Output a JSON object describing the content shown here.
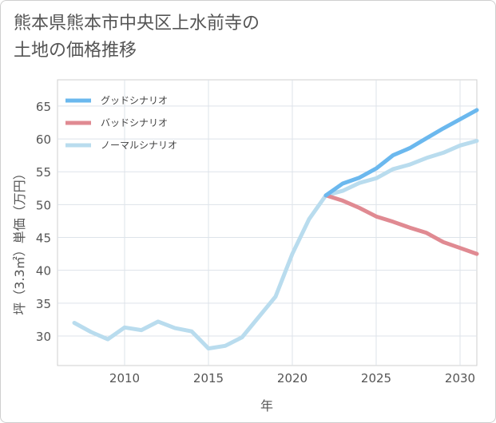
{
  "title_line1": "熊本県熊本市中央区上水前寺の",
  "title_line2": "土地の価格推移",
  "chart_data": {
    "type": "line",
    "title": "熊本県熊本市中央区上水前寺の土地の価格推移",
    "xlabel": "年",
    "ylabel": "坪（3.3㎡）単価（万円）",
    "xlim": [
      2006,
      2031
    ],
    "ylim": [
      25.5,
      69
    ],
    "x_ticks": [
      2010,
      2015,
      2020,
      2025,
      2030
    ],
    "y_ticks": [
      30,
      35,
      40,
      45,
      50,
      55,
      60,
      65
    ],
    "grid": true,
    "legend_position": "top-left",
    "series": [
      {
        "name": "グッドシナリオ",
        "color": "#6bb8ee",
        "x": [
          2022,
          2023,
          2024,
          2025,
          2026,
          2027,
          2028,
          2029,
          2030,
          2031
        ],
        "y": [
          51.4,
          53.2,
          54.1,
          55.5,
          57.5,
          58.6,
          60.1,
          61.6,
          63.0,
          64.4
        ]
      },
      {
        "name": "バッドシナリオ",
        "color": "#e08a92",
        "x": [
          2022,
          2023,
          2024,
          2025,
          2026,
          2027,
          2028,
          2029,
          2030,
          2031
        ],
        "y": [
          51.4,
          50.6,
          49.5,
          48.2,
          47.4,
          46.5,
          45.7,
          44.3,
          43.4,
          42.5
        ]
      },
      {
        "name": "ノーマルシナリオ",
        "color": "#b9dcee",
        "x": [
          2007,
          2008,
          2009,
          2010,
          2011,
          2012,
          2013,
          2014,
          2015,
          2016,
          2017,
          2018,
          2019,
          2020,
          2021,
          2022,
          2023,
          2024,
          2025,
          2026,
          2027,
          2028,
          2029,
          2030,
          2031
        ],
        "y": [
          32.0,
          30.6,
          29.5,
          31.3,
          30.9,
          32.2,
          31.2,
          30.7,
          28.1,
          28.5,
          29.8,
          32.9,
          36.0,
          42.5,
          47.8,
          51.4,
          52.1,
          53.3,
          54.0,
          55.4,
          56.1,
          57.1,
          57.9,
          59.0,
          59.7
        ]
      }
    ]
  }
}
